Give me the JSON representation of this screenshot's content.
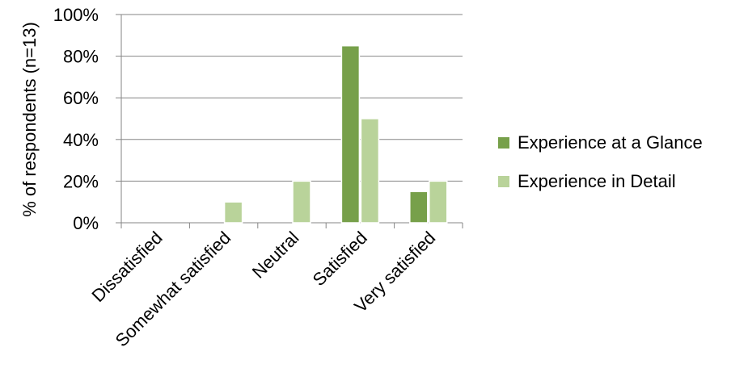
{
  "chart_data": {
    "type": "bar",
    "title": "",
    "xlabel": "",
    "ylabel": "% of respondents (n=13)",
    "ylim": [
      0,
      100
    ],
    "yticks": [
      0,
      20,
      40,
      60,
      80,
      100
    ],
    "ytick_labels": [
      "0%",
      "20%",
      "40%",
      "60%",
      "80%",
      "100%"
    ],
    "grid": "horizontal",
    "legend_position": "right",
    "categories": [
      "Dissatisfied",
      "Somewhat satisfied",
      "Neutral",
      "Satisfied",
      "Very satisfied"
    ],
    "series": [
      {
        "name": "Experience at a Glance",
        "color": "#77a04a",
        "values": [
          0,
          0,
          0,
          85,
          15
        ]
      },
      {
        "name": "Experience in Detail",
        "color": "#b9d39a",
        "values": [
          0,
          10,
          20,
          50,
          20
        ]
      }
    ]
  }
}
